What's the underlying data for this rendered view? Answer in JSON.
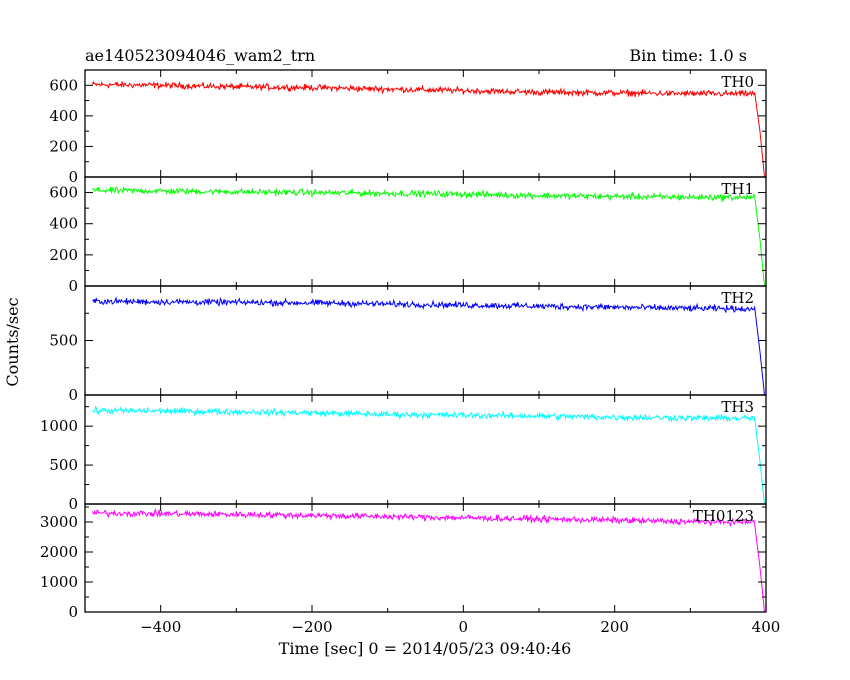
{
  "chart_data": {
    "type": "line",
    "title": "ae140523094046_wam2_trn",
    "subtitle": "Bin time: 1.0 s",
    "xlabel": "Time [sec] 0 = 2014/05/23 09:40:46",
    "ylabel": "Counts/sec",
    "xlim": [
      -500,
      400
    ],
    "x_ticks": [
      -400,
      -200,
      0,
      200,
      400
    ],
    "x_tick_labels": [
      "−400",
      "−200",
      "0",
      "200",
      "400"
    ],
    "grid": false,
    "panels": [
      {
        "name": "TH0",
        "color": "#ff0000",
        "ylim": [
          0,
          700
        ],
        "y_ticks": [
          0,
          200,
          400,
          600
        ],
        "y_tick_labels": [
          "0",
          "200",
          "400",
          "600"
        ],
        "x": [
          -490,
          -400,
          -300,
          -200,
          -100,
          0,
          100,
          200,
          300,
          385,
          392,
          398
        ],
        "values": [
          605,
          600,
          590,
          585,
          575,
          565,
          555,
          550,
          545,
          545,
          300,
          0
        ]
      },
      {
        "name": "TH1",
        "color": "#00ff00",
        "ylim": [
          0,
          700
        ],
        "y_ticks": [
          0,
          200,
          400,
          600
        ],
        "y_tick_labels": [
          "0",
          "200",
          "400",
          "600"
        ],
        "x": [
          -490,
          -400,
          -300,
          -200,
          -100,
          0,
          100,
          200,
          300,
          385,
          392,
          398
        ],
        "values": [
          615,
          610,
          605,
          600,
          595,
          590,
          580,
          575,
          570,
          570,
          300,
          0
        ]
      },
      {
        "name": "TH2",
        "color": "#0000ff",
        "ylim": [
          0,
          1000
        ],
        "y_ticks": [
          0,
          500
        ],
        "y_tick_labels": [
          "0",
          "500"
        ],
        "x": [
          -490,
          -400,
          -300,
          -200,
          -100,
          0,
          100,
          200,
          300,
          385,
          392,
          398
        ],
        "values": [
          860,
          855,
          850,
          845,
          835,
          825,
          815,
          805,
          795,
          790,
          400,
          0
        ]
      },
      {
        "name": "TH3",
        "color": "#00ffff",
        "ylim": [
          0,
          1400
        ],
        "y_ticks": [
          0,
          500,
          1000
        ],
        "y_tick_labels": [
          "0",
          "500",
          "1000"
        ],
        "x": [
          -490,
          -400,
          -300,
          -200,
          -100,
          0,
          100,
          200,
          300,
          385,
          392,
          398
        ],
        "values": [
          1200,
          1195,
          1185,
          1170,
          1150,
          1140,
          1130,
          1115,
          1105,
          1100,
          550,
          0
        ]
      },
      {
        "name": "TH0123",
        "color": "#ff00ff",
        "ylim": [
          0,
          3600
        ],
        "y_ticks": [
          0,
          1000,
          2000,
          3000
        ],
        "y_tick_labels": [
          "0",
          "1000",
          "2000",
          "3000"
        ],
        "x": [
          -490,
          -400,
          -300,
          -200,
          -100,
          0,
          100,
          200,
          300,
          385,
          392,
          398
        ],
        "values": [
          3300,
          3280,
          3250,
          3220,
          3180,
          3140,
          3100,
          3060,
          3010,
          3000,
          1500,
          0
        ]
      }
    ]
  }
}
